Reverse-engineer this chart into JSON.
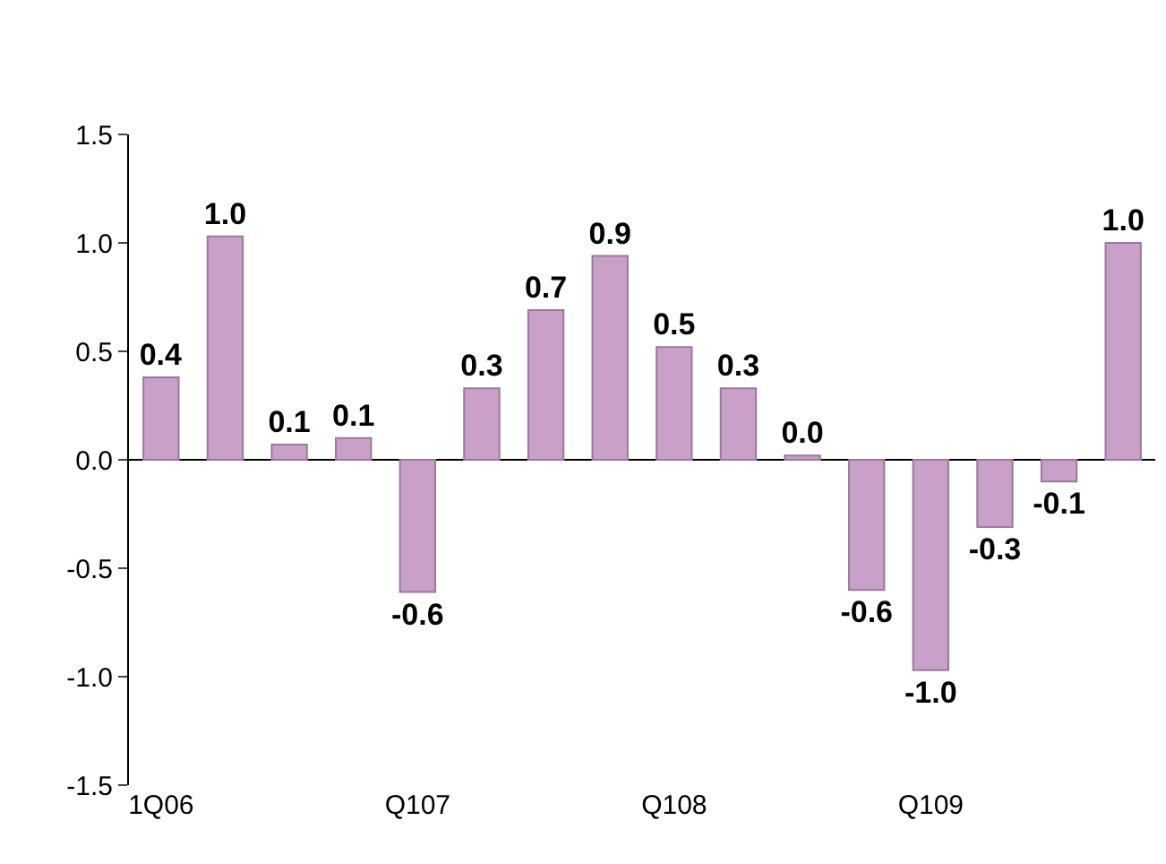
{
  "chart_data": {
    "type": "bar",
    "categories": [
      "1Q06",
      null,
      null,
      null,
      "Q107",
      null,
      null,
      null,
      "Q108",
      null,
      null,
      null,
      "Q109",
      null,
      null,
      null
    ],
    "values": [
      0.38,
      1.03,
      0.07,
      0.1,
      -0.61,
      0.33,
      0.69,
      0.94,
      0.52,
      0.33,
      0.02,
      -0.6,
      -0.97,
      -0.31,
      -0.1,
      1.0
    ],
    "value_labels": [
      "0.4",
      "1.0",
      "0.1",
      "0.1",
      "-0.6",
      "0.3",
      "0.7",
      "0.9",
      "0.5",
      "0.3",
      "0.0",
      "-0.6",
      "-1.0",
      "-0.3",
      "-0.1",
      "1.0"
    ],
    "color": "#c8a0c8",
    "ylim": [
      -1.5,
      1.5
    ],
    "yticks": [
      {
        "value": -1.5,
        "label": "-1.5"
      },
      {
        "value": -1,
        "label": "-1.0"
      },
      {
        "value": -0.5,
        "label": "-0.5"
      },
      {
        "value": 0,
        "label": "0.0"
      },
      {
        "value": 0.5,
        "label": "0.5"
      },
      {
        "value": 1,
        "label": "1.0"
      },
      {
        "value": 1.5,
        "label": "1.5"
      }
    ],
    "grid": "zero"
  }
}
